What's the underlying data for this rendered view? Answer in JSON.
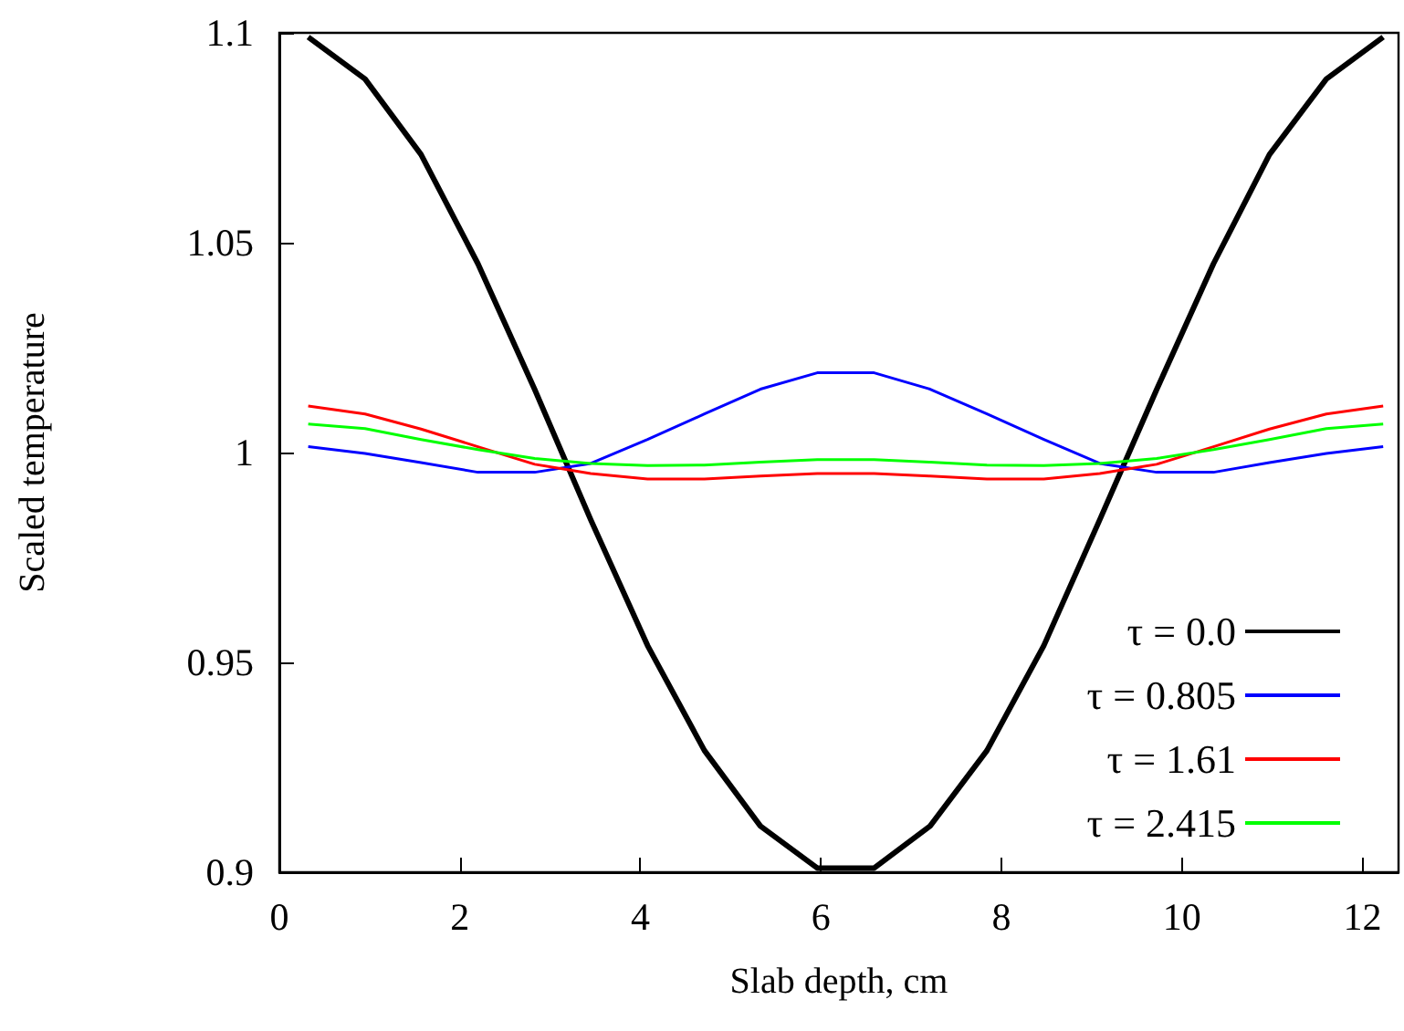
{
  "chart_data": {
    "type": "line",
    "xlabel": "Slab depth, cm",
    "ylabel": "Scaled temperature",
    "x": [
      0.32,
      0.95,
      1.57,
      2.2,
      2.83,
      3.45,
      4.08,
      4.71,
      5.33,
      5.96,
      6.59,
      7.21,
      7.84,
      8.47,
      9.09,
      9.72,
      10.35,
      10.97,
      11.6,
      12.23
    ],
    "xlim": [
      0,
      12.4
    ],
    "xticks": [
      0,
      2,
      4,
      6,
      8,
      10,
      12
    ],
    "ylim": [
      0.9,
      1.1
    ],
    "yticks": [
      0.9,
      0.95,
      1,
      1.05,
      1.1
    ],
    "grid": false,
    "legend": "bottom right",
    "marker": "none",
    "line_style": "solid",
    "series": [
      {
        "name": "τ = 0.0",
        "color": "#000000",
        "values": [
          1.099,
          1.089,
          1.071,
          1.045,
          1.015,
          0.984,
          0.954,
          0.929,
          0.911,
          0.901,
          0.901,
          0.911,
          0.929,
          0.954,
          0.984,
          1.015,
          1.045,
          1.071,
          1.089,
          1.099
        ]
      },
      {
        "name": "τ = 0.805",
        "color": "#0000ff",
        "values": [
          1.0014,
          0.9998,
          0.9976,
          0.9953,
          0.9953,
          0.9974,
          1.0031,
          1.0092,
          1.0151,
          1.019,
          1.019,
          1.0151,
          1.0092,
          1.0031,
          0.9974,
          0.9953,
          0.9953,
          0.9976,
          0.9998,
          1.0014
        ]
      },
      {
        "name": "τ = 1.61",
        "color": "#ff0000",
        "values": [
          1.0111,
          1.0092,
          1.0056,
          1.0014,
          0.9972,
          0.995,
          0.9937,
          0.9937,
          0.9944,
          0.995,
          0.995,
          0.9944,
          0.9937,
          0.9937,
          0.995,
          0.9972,
          1.0014,
          1.0056,
          1.0092,
          1.0111
        ]
      },
      {
        "name": "τ = 2.415",
        "color": "#00ff00",
        "values": [
          1.0068,
          1.0057,
          1.0031,
          1.0007,
          0.9986,
          0.9974,
          0.9969,
          0.997,
          0.9977,
          0.9983,
          0.9983,
          0.9977,
          0.997,
          0.9969,
          0.9974,
          0.9986,
          1.0007,
          1.0031,
          1.0057,
          1.0068
        ]
      }
    ]
  }
}
